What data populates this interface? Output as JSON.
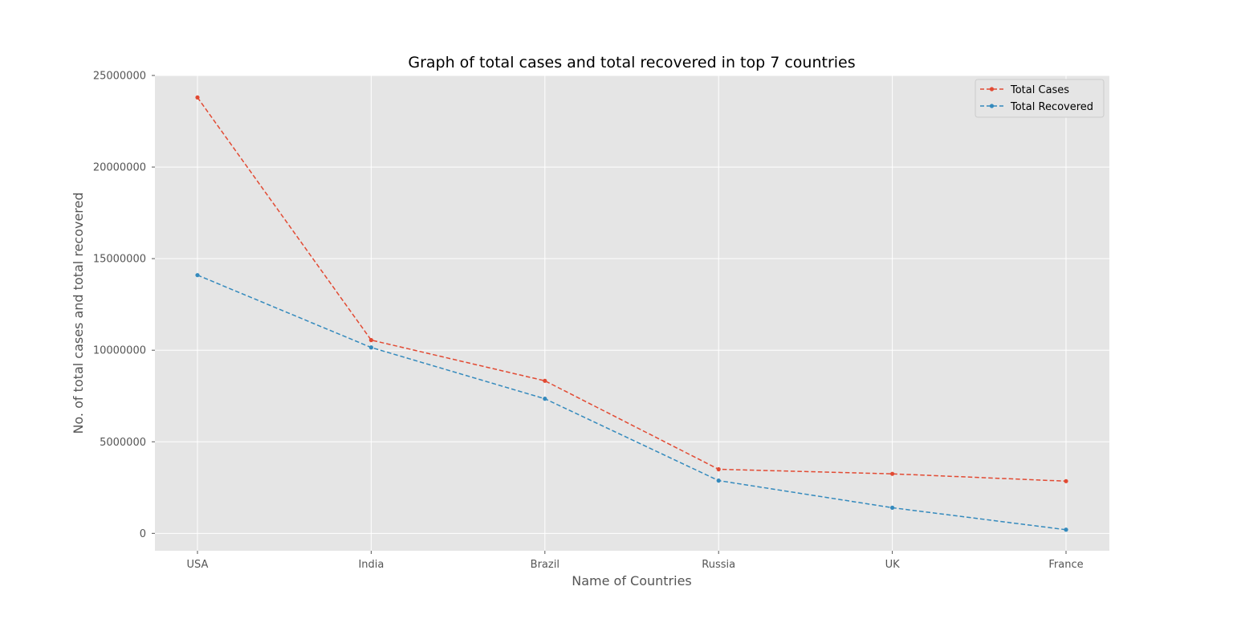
{
  "chart_data": {
    "type": "line",
    "title": "Graph of total cases and total recovered in top 7 countries",
    "xlabel": "Name of Countries",
    "ylabel": "No. of  total cases and total recovered",
    "categories": [
      "USA",
      "India",
      "Brazil",
      "Russia",
      "UK",
      "France"
    ],
    "yticks": [
      0,
      5000000,
      10000000,
      15000000,
      20000000,
      25000000
    ],
    "ytick_labels": [
      "0",
      "5000000",
      "10000000",
      "15000000",
      "20000000",
      "25000000"
    ],
    "ylim": [
      -950000,
      25000000
    ],
    "grid": true,
    "legend_position": "top-right",
    "series": [
      {
        "name": "Total Cases",
        "color": "#E24A33",
        "line_style": "dashed",
        "marker": "circle",
        "values": [
          23800000,
          10550000,
          8330000,
          3500000,
          3250000,
          2850000
        ]
      },
      {
        "name": "Total Recovered",
        "color": "#348ABD",
        "line_style": "dashed",
        "marker": "circle",
        "values": [
          14100000,
          10150000,
          7350000,
          2880000,
          1400000,
          200000
        ]
      }
    ]
  }
}
